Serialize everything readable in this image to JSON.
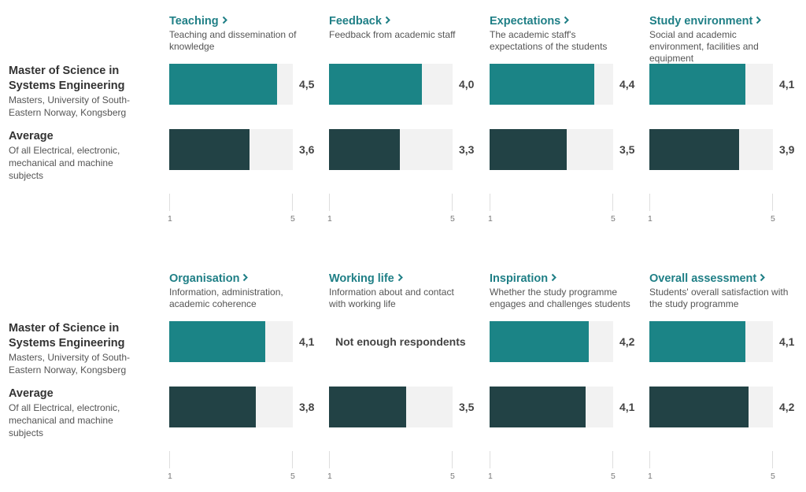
{
  "colors": {
    "primary": "#1b8486",
    "average": "#224245",
    "track": "#f2f2f2",
    "link": "#1f7f86"
  },
  "rows": {
    "program": {
      "title": "Master of Science in Systems Engineering",
      "subtitle": "Masters, University of South-Eastern Norway, Kongsberg"
    },
    "average": {
      "title": "Average",
      "subtitle": "Of all Electrical, electronic, mechanical and machine subjects"
    }
  },
  "chart_data": {
    "type": "bar",
    "orientation": "horizontal",
    "xlim": [
      1,
      5
    ],
    "tick_labels": [
      "1",
      "5"
    ],
    "series": [
      {
        "name": "Master of Science in Systems Engineering"
      },
      {
        "name": "Average"
      }
    ],
    "no_data_text": "Not enough respondents",
    "panels": [
      {
        "title": "Teaching",
        "description": "Teaching and dissemination of knowledge",
        "program": 4.5,
        "program_label": "4,5",
        "average": 3.6,
        "average_label": "3,6"
      },
      {
        "title": "Feedback",
        "description": "Feedback from academic staff",
        "program": 4.0,
        "program_label": "4,0",
        "average": 3.3,
        "average_label": "3,3"
      },
      {
        "title": "Expectations",
        "description": "The academic staff's expectations of the students",
        "program": 4.4,
        "program_label": "4,4",
        "average": 3.5,
        "average_label": "3,5"
      },
      {
        "title": "Study environment",
        "description": "Social and academic environment, facilities and equipment",
        "program": 4.1,
        "program_label": "4,1",
        "average": 3.9,
        "average_label": "3,9"
      },
      {
        "title": "Organisation",
        "description": "Information, administration, academic coherence",
        "program": 4.1,
        "program_label": "4,1",
        "average": 3.8,
        "average_label": "3,8"
      },
      {
        "title": "Working life",
        "description": "Information about and contact with working life",
        "program": null,
        "program_label": "",
        "average": 3.5,
        "average_label": "3,5"
      },
      {
        "title": "Inspiration",
        "description": "Whether the study programme engages and challenges students",
        "program": 4.2,
        "program_label": "4,2",
        "average": 4.1,
        "average_label": "4,1"
      },
      {
        "title": "Overall assessment",
        "description": "Students' overall satisfaction with the study programme",
        "program": 4.1,
        "program_label": "4,1",
        "average": 4.2,
        "average_label": "4,2"
      }
    ]
  }
}
